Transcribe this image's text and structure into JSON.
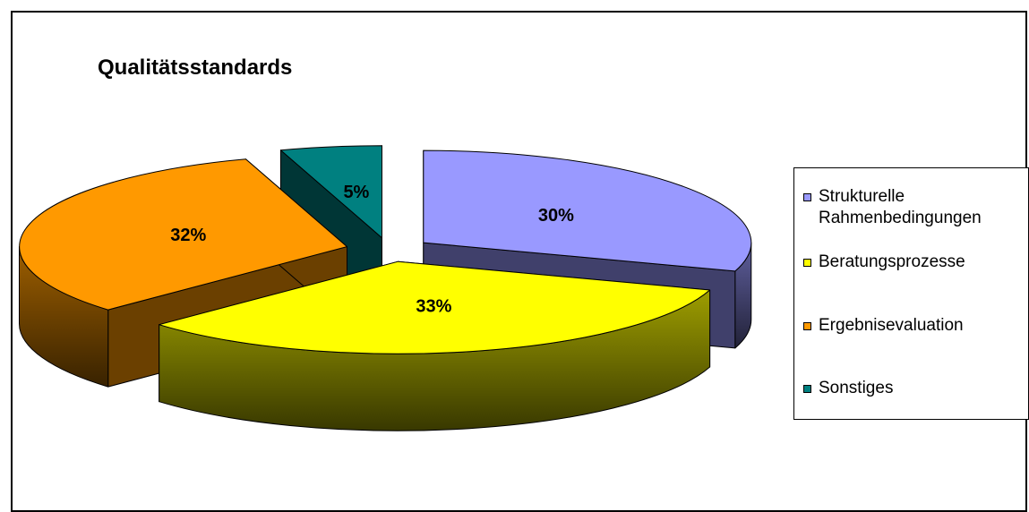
{
  "chart_data": {
    "type": "pie",
    "title": "Qualitätsstandards",
    "categories": [
      "Strukturelle Rahmenbedingungen",
      "Beratungsprozesse",
      "Ergebnisevaluation",
      "Sonstiges"
    ],
    "values": [
      30,
      33,
      32,
      5
    ],
    "labels": [
      "30%",
      "33%",
      "32%",
      "5%"
    ],
    "colors": [
      "#9999FF",
      "#FFFF00",
      "#FF9900",
      "#008080"
    ],
    "legend_position": "right",
    "style": "3d-exploded"
  }
}
